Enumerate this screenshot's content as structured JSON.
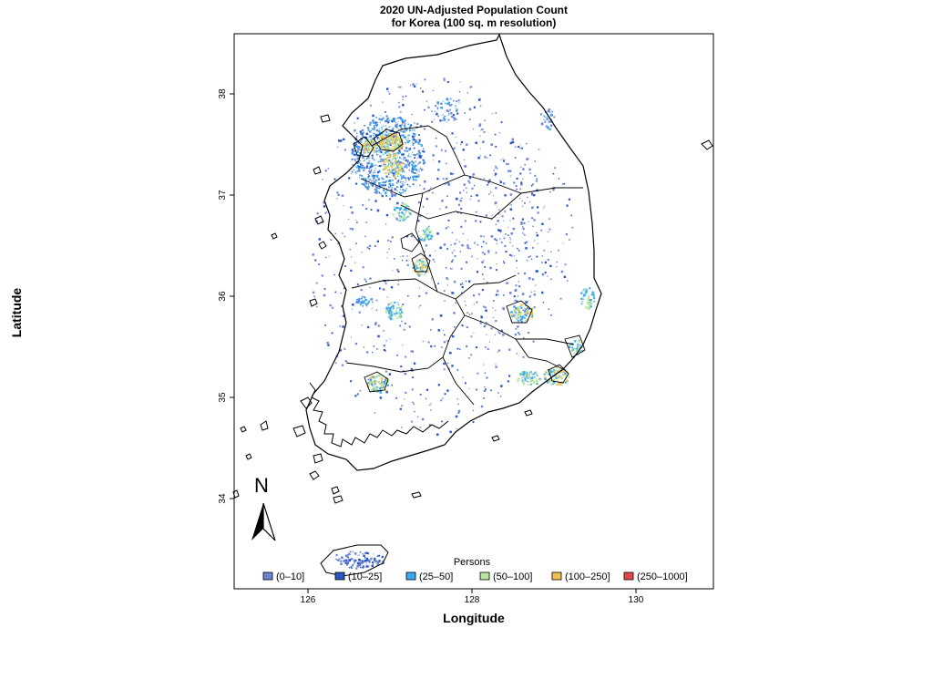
{
  "title_line1": "2020 UN-Adjusted Population Count",
  "title_line2": "for Korea (100 sq. m resolution)",
  "x_axis_label": "Longitude",
  "y_axis_label": "Latitude",
  "x_ticks": [
    "126",
    "128",
    "130"
  ],
  "y_ticks": [
    "34",
    "35",
    "36",
    "37",
    "38"
  ],
  "north_arrow_label": "N",
  "legend": {
    "title": "Persons",
    "items": [
      {
        "label": "(0–10]",
        "color": "#6f86d6"
      },
      {
        "label": "(10–25]",
        "color": "#2a55c4"
      },
      {
        "label": "(25–50]",
        "color": "#3aa8f0"
      },
      {
        "label": "(50–100]",
        "color": "#b8e6a0"
      },
      {
        "label": "(100–250]",
        "color": "#f0c050"
      },
      {
        "label": "(250–1000]",
        "color": "#e04848"
      }
    ]
  },
  "colors": {
    "outline": "#000000",
    "low": "#6f86d6",
    "mid_low": "#2a55c4",
    "mid": "#3aa8f0",
    "mid_high": "#b8e6a0",
    "high": "#f0c050",
    "top": "#e04848"
  }
}
